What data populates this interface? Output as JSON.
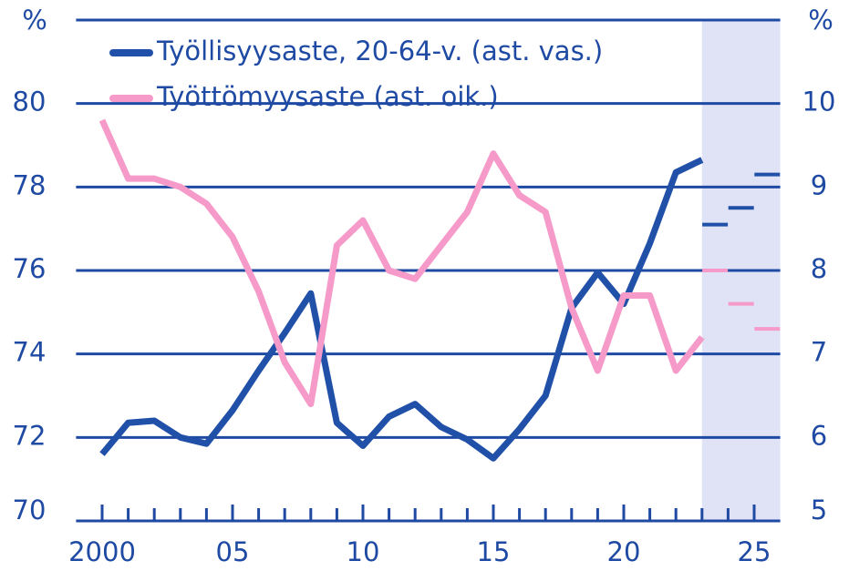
{
  "chart_data": {
    "type": "line",
    "y_unit": "%",
    "y2_unit": "%",
    "x": [
      2000,
      2001,
      2002,
      2003,
      2004,
      2005,
      2006,
      2007,
      2008,
      2009,
      2010,
      2011,
      2012,
      2013,
      2014,
      2015,
      2016,
      2017,
      2018,
      2019,
      2020,
      2021,
      2022,
      2023
    ],
    "series": [
      {
        "name": "Työllisyysaste, 20-64-v. (ast. vas.)",
        "color": "#2150a8",
        "axis": "y",
        "values": [
          71.6,
          72.35,
          72.4,
          72.0,
          71.85,
          72.65,
          73.6,
          74.5,
          75.45,
          72.35,
          71.8,
          72.5,
          72.8,
          72.25,
          71.95,
          71.5,
          72.2,
          73.0,
          75.1,
          75.95,
          75.2,
          76.65,
          78.35,
          78.65
        ],
        "forecast_x": [
          2024,
          2025,
          2026
        ],
        "forecast_values": [
          77.1,
          77.5,
          78.3
        ]
      },
      {
        "name": "Työttömyysaste (ast. oik.)",
        "color": "#f59ac9",
        "axis": "y2",
        "values": [
          9.8,
          9.1,
          9.1,
          9.0,
          8.8,
          8.4,
          7.75,
          6.9,
          6.4,
          8.3,
          8.6,
          8.0,
          7.9,
          8.3,
          8.7,
          9.4,
          8.9,
          8.7,
          7.55,
          6.8,
          7.7,
          7.7,
          6.8,
          7.2
        ],
        "forecast_x": [
          2024,
          2025,
          2026
        ],
        "forecast_values": [
          8.0,
          7.6,
          7.3
        ]
      }
    ],
    "forecast_span": [
      2023,
      2026
    ],
    "xlim": [
      1999,
      2026
    ],
    "xticks": [
      2000,
      {
        "value": 2005,
        "label": "05"
      },
      {
        "value": 2010,
        "label": "10"
      },
      {
        "value": 2015,
        "label": "15"
      },
      {
        "value": 2020,
        "label": "20"
      },
      {
        "value": 2025,
        "label": "25"
      }
    ],
    "ylim": [
      70,
      82
    ],
    "yticks": [
      70,
      72,
      74,
      76,
      78,
      80
    ],
    "y2lim": [
      5,
      11
    ],
    "y2ticks": [
      5,
      6,
      7,
      8,
      9,
      10
    ],
    "grid": true,
    "legend": "upper left"
  }
}
